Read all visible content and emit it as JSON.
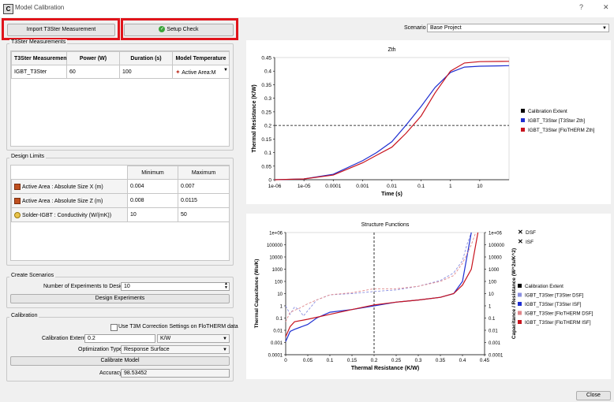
{
  "window": {
    "title": "Model Calibration",
    "help": "?",
    "close_glyph": "✕"
  },
  "toolbar": {
    "import_label": "Import T3Ster Measurement",
    "setup_label": "Setup Check"
  },
  "scenario": {
    "label": "Scenario",
    "value": "Base Project"
  },
  "t3ster": {
    "title": "T3Ster Measurements",
    "headers": [
      "T3Ster Measuremen",
      "Power (W)",
      "Duration (s)",
      "Model Temperature"
    ],
    "row": {
      "name": "IGBT_T3Ster",
      "power": "60",
      "duration": "100",
      "temp": "Active Area:M"
    }
  },
  "limits": {
    "title": "Design Limits",
    "headers": [
      "Minimum",
      "Maximum"
    ],
    "rows": [
      {
        "label": "Active Area : Absolute Size X (m)",
        "min": "0.004",
        "max": "0.007",
        "icon": "cube-icon"
      },
      {
        "label": "Active Area : Absolute Size Z (m)",
        "min": "0.008",
        "max": "0.0115",
        "icon": "cube-icon"
      },
      {
        "label": "Solder-IGBT : Conductivity (W/(mK))",
        "min": "10",
        "max": "50",
        "icon": "thermometer-icon"
      }
    ]
  },
  "scenarios": {
    "title": "Create Scenarios",
    "num_label": "Number of Experiments to Design",
    "num_value": "10",
    "button": "Design Experiments"
  },
  "calibration": {
    "title": "Calibration",
    "checkbox_label": "Use T3M Correction Settings on FloTHERM data",
    "extent_label": "Calibration Extent",
    "extent_value": "0.2",
    "extent_unit": "K/W",
    "opt_label": "Optimization Type",
    "opt_value": "Response Surface",
    "button": "Calibrate Model",
    "accuracy_label": "Accuracy",
    "accuracy_value": "98.53452"
  },
  "close_button": "Close",
  "colors": {
    "blue": "#1f2fd1",
    "red": "#c8141e",
    "highlight": "#e0141b"
  },
  "chart_data": [
    {
      "type": "line",
      "title": "Zth",
      "xlabel": "Time (s)",
      "ylabel": "Thermal Resistance (K/W)",
      "x_scale": "log",
      "xlim": [
        1e-06,
        100
      ],
      "ylim": [
        0,
        0.45
      ],
      "x_ticks": [
        "1e-06",
        "1e-05",
        "0.0001",
        "0.001",
        "0.01",
        "0.1",
        "1",
        "10"
      ],
      "y_ticks": [
        "0",
        "0.05",
        "0.1",
        "0.15",
        "0.2",
        "0.25",
        "0.3",
        "0.35",
        "0.4",
        "0.45"
      ],
      "legend": [
        "Calibration Extent",
        "IGBT_T3Ster [T3Ster Zth]",
        "IGBT_T3Ster [FloTHERM Zth]"
      ],
      "calibration_extent": 0.2,
      "series": [
        {
          "name": "IGBT_T3Ster [T3Ster Zth]",
          "color": "#1f2fd1",
          "x": [
            1e-06,
            1e-05,
            0.0001,
            0.001,
            0.003,
            0.01,
            0.03,
            0.1,
            0.3,
            1,
            3,
            10,
            100
          ],
          "y": [
            0.0,
            0.003,
            0.02,
            0.07,
            0.1,
            0.14,
            0.2,
            0.27,
            0.34,
            0.395,
            0.415,
            0.418,
            0.42
          ]
        },
        {
          "name": "IGBT_T3Ster [FloTHERM Zth]",
          "color": "#c8141e",
          "x": [
            1e-06,
            1e-05,
            0.0001,
            0.001,
            0.003,
            0.01,
            0.03,
            0.1,
            0.3,
            1,
            3,
            10,
            100
          ],
          "y": [
            0.0,
            0.003,
            0.017,
            0.062,
            0.09,
            0.12,
            0.17,
            0.235,
            0.32,
            0.4,
            0.43,
            0.435,
            0.436
          ]
        }
      ]
    },
    {
      "type": "line",
      "title": "Structure Functions",
      "xlabel": "Thermal Resistance (K/W)",
      "ylabel": "Thermal Capacitance (Ws/K)",
      "y2label": "Capacitance / Resistance (W^2s/K^2)",
      "y_scale": "log",
      "xlim": [
        0,
        0.45
      ],
      "ylim": [
        0.0001,
        1000000
      ],
      "x_ticks": [
        "0",
        "0.05",
        "0.1",
        "0.15",
        "0.2",
        "0.25",
        "0.3",
        "0.35",
        "0.4",
        "0.45"
      ],
      "y_ticks": [
        "0.0001",
        "0.001",
        "0.01",
        "0.1",
        "1",
        "10",
        "100",
        "1000",
        "10000",
        "100000",
        "1e+06"
      ],
      "legend": [
        "DSF",
        "ISF",
        "Calibration Extent",
        "IGBT_T3Ster [T3Ster DSF]",
        "IGBT_T3Ster [T3Ster ISF]",
        "IGBT_T3Ster [FloTHERM DSF]",
        "IGBT_T3Ster [FloTHERM ISF]"
      ],
      "calibration_extent": 0.2,
      "series": [
        {
          "name": "IGBT_T3Ster [T3Ster DSF]",
          "color": "#8a8fe0",
          "dashed": true,
          "x": [
            0,
            0.01,
            0.02,
            0.03,
            0.04,
            0.05,
            0.07,
            0.1,
            0.15,
            0.2,
            0.25,
            0.3,
            0.35,
            0.38,
            0.4,
            0.41,
            0.42
          ],
          "y": [
            1,
            0.2,
            0.8,
            0.5,
            0.15,
            0.4,
            3,
            8,
            10,
            15,
            20,
            40,
            120,
            500,
            5000,
            100000,
            1000000
          ]
        },
        {
          "name": "IGBT_T3Ster [T3Ster ISF]",
          "color": "#1f2fd1",
          "dashed": false,
          "x": [
            0,
            0.01,
            0.02,
            0.05,
            0.07,
            0.1,
            0.15,
            0.2,
            0.25,
            0.3,
            0.35,
            0.38,
            0.4,
            0.41,
            0.42
          ],
          "y": [
            0.0012,
            0.008,
            0.012,
            0.03,
            0.1,
            0.3,
            0.5,
            1,
            2,
            3,
            5,
            10,
            100,
            10000,
            1000000
          ]
        },
        {
          "name": "IGBT_T3Ster [FloTHERM DSF]",
          "color": "#e0868a",
          "dashed": true,
          "x": [
            0,
            0.01,
            0.03,
            0.05,
            0.07,
            0.1,
            0.15,
            0.2,
            0.25,
            0.3,
            0.35,
            0.38,
            0.4,
            0.42,
            0.43
          ],
          "y": [
            0.05,
            0.3,
            0.6,
            1.5,
            3,
            8,
            12,
            25,
            25,
            40,
            100,
            300,
            3000,
            100000,
            1000000
          ]
        },
        {
          "name": "IGBT_T3Ster [FloTHERM ISF]",
          "color": "#c8141e",
          "dashed": false,
          "x": [
            0,
            0.01,
            0.02,
            0.05,
            0.1,
            0.15,
            0.2,
            0.25,
            0.3,
            0.35,
            0.38,
            0.4,
            0.42,
            0.43,
            0.435
          ],
          "y": [
            0.003,
            0.02,
            0.05,
            0.08,
            0.2,
            0.5,
            1.2,
            2,
            3,
            5,
            10,
            50,
            1000,
            100000,
            1000000
          ]
        }
      ]
    }
  ]
}
